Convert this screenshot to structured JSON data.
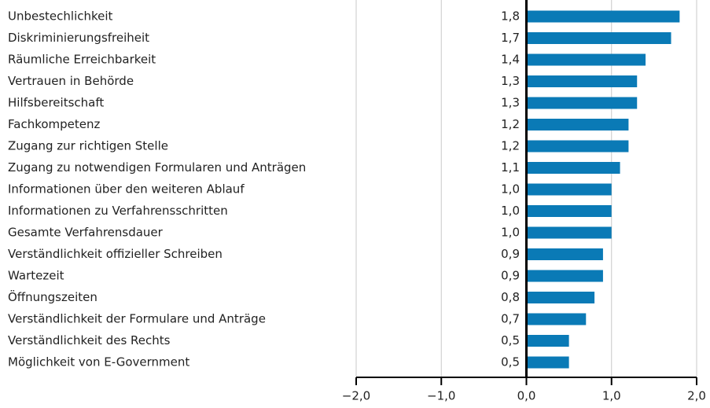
{
  "chart_data": {
    "type": "barh",
    "categories": [
      "Unbestechlichkeit",
      "Diskriminierungsfreiheit",
      "Räumliche Erreichbarkeit",
      "Vertrauen in Behörde",
      "Hilfsbereitschaft",
      "Fachkompetenz",
      "Zugang zur richtigen Stelle",
      "Zugang zu notwendigen Formularen und Anträgen",
      "Informationen über den weiteren Ablauf",
      "Informationen zu Verfahrensschritten",
      "Gesamte Verfahrensdauer",
      "Verständlichkeit offizieller Schreiben",
      "Wartezeit",
      "Öffnungszeiten",
      "Verständlichkeit der Formulare und Anträge",
      "Verständlichkeit des Rechts",
      "Möglichkeit von E-Government"
    ],
    "values": [
      1.8,
      1.7,
      1.4,
      1.3,
      1.3,
      1.2,
      1.2,
      1.1,
      1.0,
      1.0,
      1.0,
      0.9,
      0.9,
      0.8,
      0.7,
      0.5,
      0.5
    ],
    "value_labels": [
      "1,8",
      "1,7",
      "1,4",
      "1,3",
      "1,3",
      "1,2",
      "1,2",
      "1,1",
      "1,0",
      "1,0",
      "1,0",
      "0,9",
      "0,9",
      "0,8",
      "0,7",
      "0,5",
      "0,5"
    ],
    "color": "#0a7ab6",
    "xlim": [
      -2,
      2
    ],
    "xticks": [
      {
        "value": -2,
        "label": "−2,0"
      },
      {
        "value": -1,
        "label": "−1,0"
      },
      {
        "value": 0,
        "label": "0,0"
      },
      {
        "value": 1,
        "label": "1,0"
      },
      {
        "value": 2,
        "label": "2,0"
      }
    ],
    "grid": true
  }
}
